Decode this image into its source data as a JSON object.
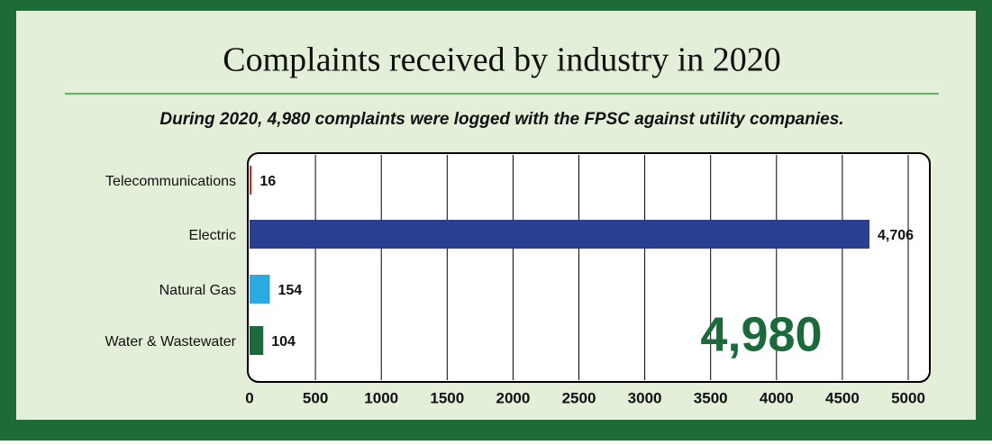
{
  "chart_data": {
    "type": "bar",
    "orientation": "horizontal",
    "title": "Complaints received by industry in 2020",
    "subtitle": "During 2020, 4,980 complaints were logged with the FPSC against utility companies.",
    "categories": [
      "Telecommunications",
      "Electric",
      "Natural Gas",
      "Water & Wastewater"
    ],
    "values": [
      16,
      4706,
      154,
      104
    ],
    "value_labels": [
      "16",
      "4,706",
      "154",
      "104"
    ],
    "colors": [
      "#c0392b",
      "#28408f",
      "#29abe2",
      "#1b6b3a"
    ],
    "xlim": [
      0,
      5000
    ],
    "xticks": [
      0,
      500,
      1000,
      1500,
      2000,
      2500,
      3000,
      3500,
      4000,
      4500,
      5000
    ],
    "grid": true,
    "annotation": "4,980"
  }
}
